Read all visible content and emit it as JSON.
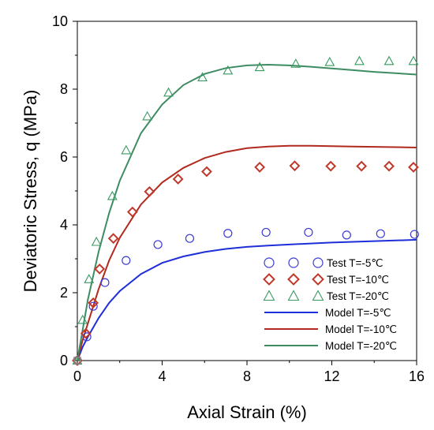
{
  "chart_data": {
    "type": "scatter",
    "xlabel": "Axial Strain (%)",
    "ylabel": "Deviatoric Stress, q (MPa)",
    "xlim": [
      0,
      16
    ],
    "ylim": [
      0,
      10
    ],
    "xticks": [
      0,
      4,
      8,
      12,
      16
    ],
    "yticks": [
      0,
      2,
      4,
      6,
      8,
      10
    ],
    "grid": false,
    "legend_position": "lower-right",
    "test_series": [
      {
        "name": "Test  T=-5℃",
        "marker": "circle",
        "color": "#3b3bd6",
        "points": [
          [
            0,
            0
          ],
          [
            0.45,
            0.7
          ],
          [
            0.75,
            1.6
          ],
          [
            1.3,
            2.3
          ],
          [
            2.3,
            2.95
          ],
          [
            3.8,
            3.42
          ],
          [
            5.3,
            3.6
          ],
          [
            7.1,
            3.75
          ],
          [
            8.9,
            3.78
          ],
          [
            10.9,
            3.78
          ],
          [
            12.7,
            3.7
          ],
          [
            14.3,
            3.74
          ],
          [
            15.9,
            3.72
          ]
        ]
      },
      {
        "name": "Test  T=-10℃",
        "marker": "diamond",
        "color": "#c0392b",
        "points": [
          [
            0,
            0
          ],
          [
            0.4,
            0.8
          ],
          [
            0.75,
            1.7
          ],
          [
            1.05,
            2.7
          ],
          [
            1.7,
            3.6
          ],
          [
            2.6,
            4.38
          ],
          [
            3.4,
            4.98
          ],
          [
            4.75,
            5.35
          ],
          [
            6.1,
            5.57
          ],
          [
            8.6,
            5.7
          ],
          [
            10.25,
            5.74
          ],
          [
            11.95,
            5.73
          ],
          [
            13.4,
            5.73
          ],
          [
            14.7,
            5.73
          ],
          [
            15.85,
            5.7
          ]
        ]
      },
      {
        "name": "Test  T=-20℃",
        "marker": "triangle",
        "color": "#3a9a60",
        "points": [
          [
            0,
            0
          ],
          [
            0.25,
            1.2
          ],
          [
            0.55,
            2.4
          ],
          [
            0.9,
            3.5
          ],
          [
            1.65,
            4.85
          ],
          [
            2.3,
            6.2
          ],
          [
            3.3,
            7.2
          ],
          [
            4.3,
            7.9
          ],
          [
            5.9,
            8.35
          ],
          [
            7.1,
            8.55
          ],
          [
            8.6,
            8.65
          ],
          [
            10.3,
            8.75
          ],
          [
            11.9,
            8.8
          ],
          [
            13.3,
            8.83
          ],
          [
            14.7,
            8.83
          ],
          [
            15.85,
            8.83
          ]
        ]
      }
    ],
    "model_series": [
      {
        "name": "Model T=-5℃",
        "color": "#1f2fd8",
        "points": [
          [
            0,
            0
          ],
          [
            0.25,
            0.4
          ],
          [
            0.5,
            0.7
          ],
          [
            1,
            1.25
          ],
          [
            1.5,
            1.7
          ],
          [
            2,
            2.05
          ],
          [
            3,
            2.55
          ],
          [
            4,
            2.88
          ],
          [
            5,
            3.07
          ],
          [
            6,
            3.2
          ],
          [
            7,
            3.29
          ],
          [
            8,
            3.35
          ],
          [
            9,
            3.39
          ],
          [
            10,
            3.42
          ],
          [
            11,
            3.45
          ],
          [
            12,
            3.48
          ],
          [
            13,
            3.5
          ],
          [
            14,
            3.52
          ],
          [
            15,
            3.54
          ],
          [
            16,
            3.56
          ]
        ]
      },
      {
        "name": "Model T=-10℃",
        "color": "#b22a1e",
        "points": [
          [
            0,
            0
          ],
          [
            0.25,
            0.6
          ],
          [
            0.5,
            1.1
          ],
          [
            1,
            2.1
          ],
          [
            1.5,
            2.95
          ],
          [
            2,
            3.62
          ],
          [
            3,
            4.6
          ],
          [
            4,
            5.25
          ],
          [
            5,
            5.68
          ],
          [
            6,
            5.97
          ],
          [
            7,
            6.15
          ],
          [
            8,
            6.26
          ],
          [
            9,
            6.31
          ],
          [
            10,
            6.33
          ],
          [
            11,
            6.33
          ],
          [
            12,
            6.32
          ],
          [
            13,
            6.31
          ],
          [
            14,
            6.3
          ],
          [
            15,
            6.29
          ],
          [
            16,
            6.28
          ]
        ]
      },
      {
        "name": "Model T=-20℃",
        "color": "#3e8c63",
        "points": [
          [
            0,
            0
          ],
          [
            0.25,
            0.9
          ],
          [
            0.5,
            1.8
          ],
          [
            1,
            3.2
          ],
          [
            1.5,
            4.35
          ],
          [
            2,
            5.3
          ],
          [
            3,
            6.7
          ],
          [
            4,
            7.55
          ],
          [
            5,
            8.12
          ],
          [
            6,
            8.45
          ],
          [
            7,
            8.62
          ],
          [
            8,
            8.7
          ],
          [
            9,
            8.72
          ],
          [
            10,
            8.7
          ],
          [
            11,
            8.66
          ],
          [
            12,
            8.61
          ],
          [
            13,
            8.56
          ],
          [
            14,
            8.51
          ],
          [
            15,
            8.47
          ],
          [
            16,
            8.43
          ]
        ]
      }
    ]
  }
}
